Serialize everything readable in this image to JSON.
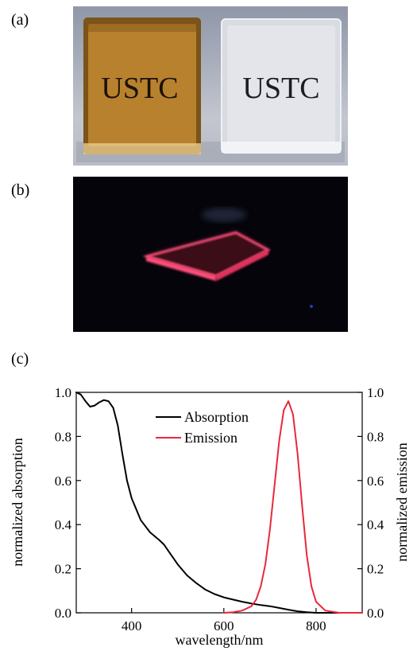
{
  "panels": {
    "a": {
      "label": "(a)",
      "left_text": "USTC",
      "right_text": "USTC"
    },
    "b": {
      "label": "(b)"
    },
    "c": {
      "label": "(c)"
    }
  },
  "colors": {
    "absorption": "#000000",
    "emission": "#e8293a",
    "amber_slab": "#b07a2a",
    "glow": "#ff3a6a"
  },
  "chart_data": {
    "type": "line",
    "xlabel": "wavelength/nm",
    "ylabel_left": "normalized absorption",
    "ylabel_right": "normalized emission",
    "xlim": [
      280,
      900
    ],
    "ylim_left": [
      0,
      1.0
    ],
    "ylim_right": [
      0,
      1.0
    ],
    "x_ticks": [
      "400",
      "600",
      "800"
    ],
    "x_tick_values": [
      400,
      600,
      800
    ],
    "y_ticks_left": [
      "0.0",
      "0.2",
      "0.4",
      "0.6",
      "0.8",
      "1.0"
    ],
    "y_ticks_right": [
      "0.0",
      "0.2",
      "0.4",
      "0.6",
      "0.8",
      "1.0"
    ],
    "y_tick_values": [
      0,
      0.2,
      0.4,
      0.6,
      0.8,
      1.0
    ],
    "legend_position": "top-center",
    "grid": false,
    "series": [
      {
        "name": "Absorption",
        "axis": "left",
        "x": [
          280,
          290,
          300,
          310,
          320,
          330,
          340,
          350,
          360,
          370,
          380,
          390,
          400,
          420,
          440,
          460,
          470,
          480,
          500,
          520,
          540,
          560,
          580,
          600,
          620,
          640,
          660,
          680,
          700,
          720,
          740,
          760,
          780,
          800,
          900
        ],
        "y": [
          1.0,
          0.99,
          0.96,
          0.935,
          0.94,
          0.955,
          0.965,
          0.96,
          0.93,
          0.85,
          0.72,
          0.6,
          0.52,
          0.42,
          0.365,
          0.33,
          0.31,
          0.28,
          0.22,
          0.17,
          0.135,
          0.105,
          0.085,
          0.07,
          0.06,
          0.05,
          0.042,
          0.035,
          0.03,
          0.022,
          0.014,
          0.007,
          0.003,
          0.0,
          0.0
        ]
      },
      {
        "name": "Emission",
        "axis": "right",
        "x": [
          600,
          620,
          640,
          660,
          670,
          680,
          690,
          700,
          710,
          720,
          730,
          740,
          750,
          760,
          770,
          780,
          790,
          800,
          820,
          850,
          900
        ],
        "y": [
          0.0,
          0.003,
          0.01,
          0.03,
          0.06,
          0.12,
          0.22,
          0.38,
          0.58,
          0.78,
          0.92,
          0.96,
          0.9,
          0.72,
          0.48,
          0.26,
          0.12,
          0.05,
          0.01,
          0.0,
          0.0
        ]
      }
    ]
  }
}
